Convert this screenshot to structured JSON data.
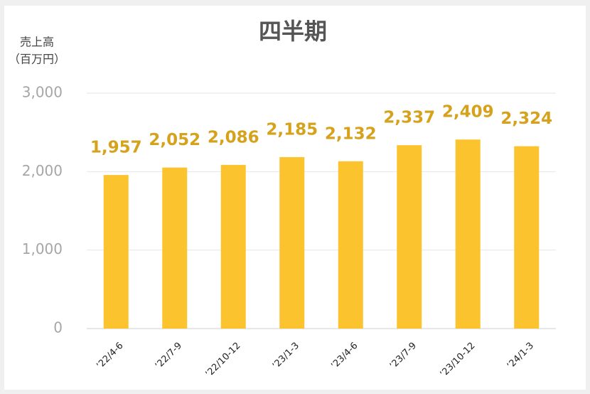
{
  "chart_data": {
    "type": "bar",
    "title": "四半期",
    "ylabel": [
      "売上高",
      "（百万円）"
    ],
    "categories": [
      "’22/4-6",
      "’22/7-9",
      "’22/10-12",
      "’23/1-3",
      "’23/4-6",
      "’23/7-9",
      "’23/10-12",
      "’24/1-3"
    ],
    "values": [
      1957,
      2052,
      2086,
      2185,
      2132,
      2337,
      2409,
      2324
    ],
    "value_labels": [
      "1,957",
      "2,052",
      "2,086",
      "2,185",
      "2,132",
      "2,337",
      "2,409",
      "2,324"
    ],
    "color": "#fbc32d",
    "ylim": [
      0,
      3000
    ],
    "yticks": [
      0,
      {
        "value": 1000,
        "label": "1,000"
      },
      {
        "value": 2000,
        "label": "2,000"
      },
      {
        "value": 3000,
        "label": "3,000"
      }
    ],
    "grid": true
  }
}
